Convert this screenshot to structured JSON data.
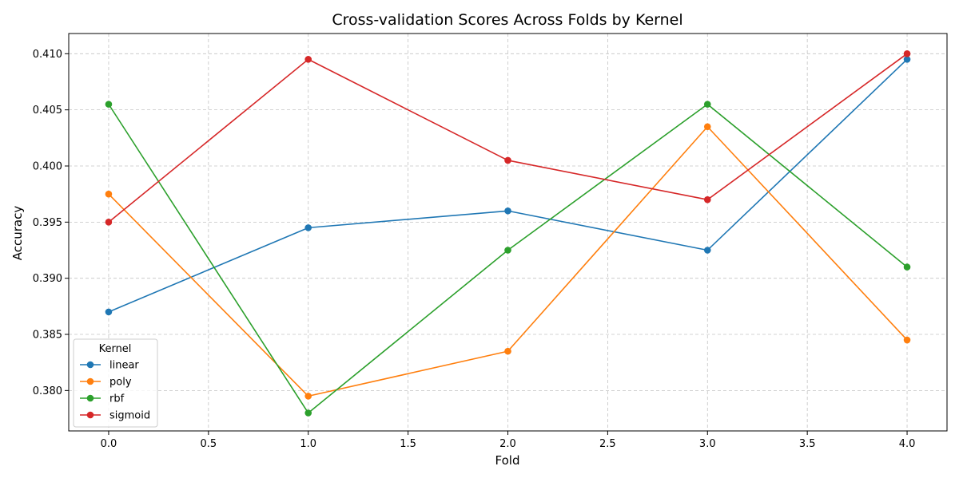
{
  "chart_data": {
    "type": "line",
    "title": "Cross-validation Scores Across Folds by Kernel",
    "xlabel": "Fold",
    "ylabel": "Accuracy",
    "x": [
      0,
      1,
      2,
      3,
      4
    ],
    "xlim": [
      -0.2,
      4.2
    ],
    "ylim": [
      0.3764,
      0.4118
    ],
    "xticks": [
      0.0,
      0.5,
      1.0,
      1.5,
      2.0,
      2.5,
      3.0,
      3.5,
      4.0
    ],
    "xtick_labels": [
      "0.0",
      "0.5",
      "1.0",
      "1.5",
      "2.0",
      "2.5",
      "3.0",
      "3.5",
      "4.0"
    ],
    "yticks": [
      0.38,
      0.385,
      0.39,
      0.395,
      0.4,
      0.405,
      0.41
    ],
    "ytick_labels": [
      "0.380",
      "0.385",
      "0.390",
      "0.395",
      "0.400",
      "0.405",
      "0.410"
    ],
    "grid": true,
    "marker": "circle",
    "legend": {
      "title": "Kernel",
      "position": "lower-left"
    },
    "series": [
      {
        "name": "linear",
        "color": "#1f77b4",
        "values": [
          0.387,
          0.3945,
          0.396,
          0.3925,
          0.4095
        ]
      },
      {
        "name": "poly",
        "color": "#ff7f0e",
        "values": [
          0.3975,
          0.3795,
          0.3835,
          0.4035,
          0.3845
        ]
      },
      {
        "name": "rbf",
        "color": "#2ca02c",
        "values": [
          0.4055,
          0.378,
          0.3925,
          0.4055,
          0.391
        ]
      },
      {
        "name": "sigmoid",
        "color": "#d62728",
        "values": [
          0.395,
          0.4095,
          0.4005,
          0.397,
          0.41
        ]
      }
    ]
  }
}
